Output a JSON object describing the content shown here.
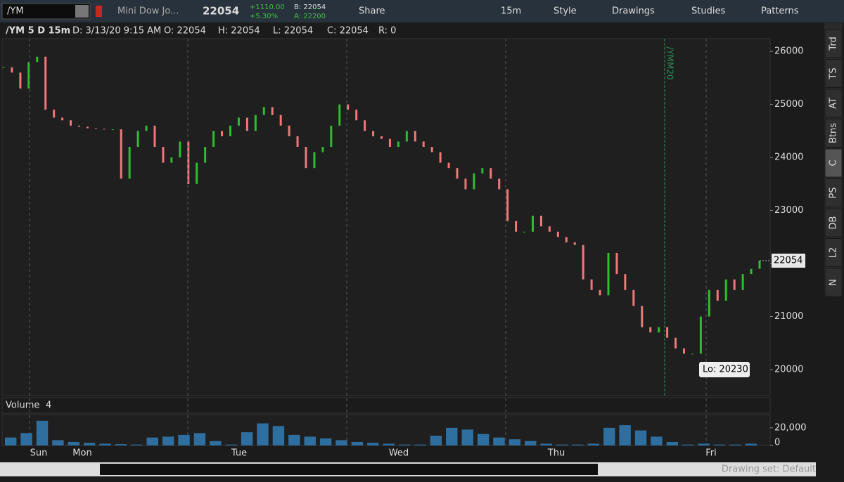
{
  "toolbar": {
    "symbol": "/YM",
    "description": "Mini Dow Jo...",
    "last": "22054",
    "net_change": "+1110.00",
    "pct_change": "+5.30%",
    "bid": "B: 22054",
    "ask": "A: 22200",
    "buttons": [
      "Share",
      "15m",
      "Style",
      "Drawings",
      "Studies",
      "Patterns"
    ]
  },
  "info_bar": [
    "/YM 5 D 15m",
    "D: 3/13/20 9:15 AM",
    "O: 22054",
    "H: 22054",
    "L: 22054",
    "C: 22054",
    "R: 0"
  ],
  "chart": {
    "type": "candlestick",
    "closes": [
      25700,
      25600,
      25300,
      25800,
      25900,
      24900,
      24750,
      24700,
      24600,
      24580,
      24550,
      24540,
      24530,
      24530,
      23600,
      24200,
      24500,
      24600,
      24200,
      23900,
      24000,
      24300,
      23500,
      23900,
      24200,
      24500,
      24400,
      24600,
      24750,
      24500,
      24800,
      24950,
      24800,
      24600,
      24400,
      24200,
      23800,
      24100,
      24200,
      24600,
      25000,
      24900,
      24700,
      24500,
      24400,
      24350,
      24200,
      24300,
      24500,
      24300,
      24200,
      24100,
      23900,
      23800,
      23600,
      23400,
      23700,
      23800,
      23600,
      23400,
      22800,
      22600,
      22600,
      22900,
      22700,
      22600,
      22500,
      22400,
      22350,
      21700,
      21500,
      21400,
      22200,
      21800,
      21500,
      21200,
      20800,
      20700,
      20800,
      20600,
      20400,
      20300,
      20300,
      21000,
      21500,
      21300,
      21700,
      21500,
      21800,
      21900,
      22054
    ],
    "ylim": [
      19510,
      26240
    ],
    "yticks": [
      20000,
      21000,
      22000,
      23000,
      24000,
      25000,
      26000
    ],
    "last_label": "22054",
    "low_annotation": "Lo: 20230",
    "contract_label": "/YMM20",
    "day_labels": [
      "Sun",
      "Mon",
      "Tue",
      "Wed",
      "Thu",
      "Fri"
    ]
  },
  "volume": {
    "title": "Volume",
    "value": "4",
    "values": [
      9000,
      14000,
      28000,
      6000,
      4000,
      3000,
      2000,
      1500,
      1000,
      9000,
      10000,
      12000,
      14000,
      5000,
      1000,
      15000,
      25000,
      22000,
      12000,
      10000,
      8000,
      6000,
      4000,
      3000,
      2000,
      1000,
      1000,
      11000,
      20000,
      18000,
      13000,
      9000,
      7000,
      5000,
      2000,
      1000,
      1000,
      2000,
      20000,
      23000,
      17000,
      10000,
      4000,
      1000,
      2000,
      1000,
      1000,
      2000
    ],
    "ylim": [
      0,
      35000
    ],
    "yticks": [
      0,
      {
        "value": 20000,
        "label": "20,000"
      }
    ]
  },
  "footer": {
    "drawing_set": "Drawing set: Default"
  },
  "side_tabs": [
    "Trd",
    "TS",
    "AT",
    "Btns",
    "C",
    "PS",
    "DB",
    "L2",
    "N"
  ]
}
